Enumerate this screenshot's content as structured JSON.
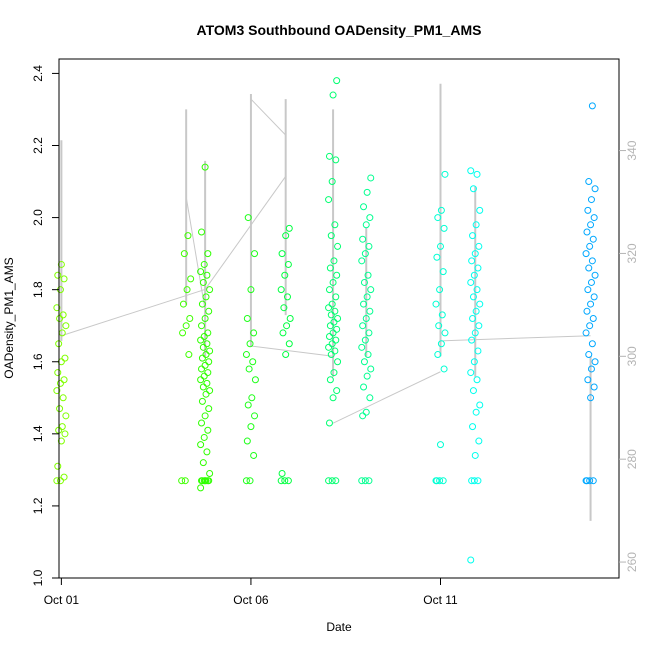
{
  "chart_data": {
    "type": "scatter",
    "title": "ATOM3 Southbound OADensity_PM1_AMS",
    "xlabel": "Date",
    "ylabel": "OADensity_PM1_AMS",
    "xlim": [
      "2017-09-30T22:30",
      "2017-10-15T17:00"
    ],
    "ylim": [
      1.0,
      2.44
    ],
    "y2lim": [
      256.9,
      357.8
    ],
    "x_ticks": [
      {
        "date": "2017-10-01",
        "label": "Oct 01"
      },
      {
        "date": "2017-10-06",
        "label": "Oct 06"
      },
      {
        "date": "2017-10-11",
        "label": "Oct 11"
      }
    ],
    "y_ticks": [
      {
        "value": 1.0,
        "label": "1.0"
      },
      {
        "value": 1.2,
        "label": "1.2"
      },
      {
        "value": 1.4,
        "label": "1.4"
      },
      {
        "value": 1.6,
        "label": "1.6"
      },
      {
        "value": 1.8,
        "label": "1.8"
      },
      {
        "value": 2.0,
        "label": "2.0"
      },
      {
        "value": 2.2,
        "label": "2.2"
      },
      {
        "value": 2.4,
        "label": "2.4"
      }
    ],
    "y2_ticks": [
      {
        "value": 260,
        "label": "260"
      },
      {
        "value": 280,
        "label": "280"
      },
      {
        "value": 300,
        "label": "300"
      },
      {
        "value": 320,
        "label": "320"
      },
      {
        "value": 340,
        "label": "340"
      }
    ],
    "grid": false,
    "legend": "none",
    "point_series": [
      {
        "x": "2017-10-01T00:00",
        "color": "#80ff00",
        "values": [
          1.27,
          1.27,
          1.28,
          1.31,
          1.38,
          1.4,
          1.41,
          1.42,
          1.45,
          1.47,
          1.5,
          1.52,
          1.54,
          1.55,
          1.57,
          1.6,
          1.61,
          1.65,
          1.68,
          1.7,
          1.72,
          1.73,
          1.75,
          1.8,
          1.83,
          1.84,
          1.87
        ]
      },
      {
        "x": "2017-10-04T07:00",
        "color": "#3fff00",
        "values": [
          1.27,
          1.27,
          1.62,
          1.68,
          1.7,
          1.72,
          1.76,
          1.8,
          1.83,
          1.9,
          1.95
        ]
      },
      {
        "x": "2017-10-04T19:00",
        "color": "#2fff00",
        "values": [
          1.25,
          1.27,
          1.27,
          1.27,
          1.27,
          1.27,
          1.27,
          1.27,
          1.29,
          1.32,
          1.35,
          1.37,
          1.39,
          1.41,
          1.43,
          1.45,
          1.47,
          1.49,
          1.51,
          1.52,
          1.53,
          1.54,
          1.55,
          1.56,
          1.57,
          1.58,
          1.59,
          1.6,
          1.61,
          1.62,
          1.63,
          1.64,
          1.65,
          1.66,
          1.67,
          1.68,
          1.7,
          1.72,
          1.74,
          1.76,
          1.78,
          1.8,
          1.82,
          1.84,
          1.85,
          1.87,
          1.9,
          1.96,
          2.14
        ]
      },
      {
        "x": "2017-10-06T00:00",
        "color": "#1fff1a",
        "values": [
          1.27,
          1.27,
          1.34,
          1.38,
          1.42,
          1.45,
          1.48,
          1.5,
          1.55,
          1.58,
          1.6,
          1.62,
          1.65,
          1.68,
          1.72,
          1.8,
          1.9,
          2.0
        ]
      },
      {
        "x": "2017-10-06T22:00",
        "color": "#00ff40",
        "values": [
          1.27,
          1.27,
          1.27,
          1.29,
          1.62,
          1.65,
          1.68,
          1.7,
          1.72,
          1.75,
          1.78,
          1.8,
          1.84,
          1.87,
          1.9,
          1.95,
          1.97
        ]
      },
      {
        "x": "2017-10-08T04:00",
        "color": "#00ff70",
        "values": [
          1.27,
          1.27,
          1.27,
          1.43,
          1.5,
          1.52,
          1.55,
          1.57,
          1.6,
          1.62,
          1.63,
          1.64,
          1.65,
          1.66,
          1.67,
          1.68,
          1.69,
          1.7,
          1.71,
          1.72,
          1.73,
          1.74,
          1.75,
          1.76,
          1.78,
          1.8,
          1.82,
          1.84,
          1.86,
          1.88,
          1.92,
          1.95,
          1.98,
          2.05,
          2.1,
          2.16,
          2.17,
          2.34,
          2.38
        ]
      },
      {
        "x": "2017-10-09T01:00",
        "color": "#00ff90",
        "values": [
          1.27,
          1.27,
          1.27,
          1.45,
          1.46,
          1.5,
          1.53,
          1.56,
          1.58,
          1.6,
          1.62,
          1.64,
          1.66,
          1.68,
          1.7,
          1.72,
          1.74,
          1.76,
          1.78,
          1.8,
          1.82,
          1.84,
          1.88,
          1.9,
          1.92,
          1.94,
          1.98,
          2.0,
          2.03,
          2.07,
          2.11
        ]
      },
      {
        "x": "2017-10-11T00:00",
        "color": "#00ffd4",
        "values": [
          1.27,
          1.27,
          1.27,
          1.27,
          1.37,
          1.58,
          1.62,
          1.65,
          1.68,
          1.7,
          1.73,
          1.76,
          1.8,
          1.85,
          1.89,
          1.92,
          1.97,
          2.0,
          2.02,
          2.12
        ]
      },
      {
        "x": "2017-10-11T22:00",
        "color": "#00ffee",
        "values": [
          1.05,
          1.27,
          1.27,
          1.27,
          1.34,
          1.38,
          1.42,
          1.46,
          1.48,
          1.52,
          1.55,
          1.57,
          1.6,
          1.63,
          1.66,
          1.68,
          1.7,
          1.72,
          1.74,
          1.76,
          1.78,
          1.8,
          1.82,
          1.84,
          1.86,
          1.88,
          1.9,
          1.92,
          1.95,
          1.98,
          2.02,
          2.08,
          2.12,
          2.13
        ]
      },
      {
        "x": "2017-10-14T23:00",
        "color": "#00a8ff",
        "values": [
          1.27,
          1.27,
          1.27,
          1.27,
          1.5,
          1.53,
          1.55,
          1.58,
          1.6,
          1.62,
          1.65,
          1.68,
          1.7,
          1.72,
          1.74,
          1.76,
          1.78,
          1.8,
          1.82,
          1.84,
          1.86,
          1.88,
          1.9,
          1.92,
          1.94,
          1.96,
          1.98,
          2.0,
          2.02,
          2.05,
          2.08,
          2.1,
          2.31
        ]
      }
    ],
    "line_series": {
      "color": "#c8c8c8",
      "axis": "right",
      "range_segments": [
        {
          "x": "2017-10-01T00:00",
          "min": 303,
          "max": 342
        },
        {
          "x": "2017-10-04T07:00",
          "min": 310,
          "max": 348
        },
        {
          "x": "2017-10-04T19:00",
          "min": 300,
          "max": 338
        },
        {
          "x": "2017-10-06T00:00",
          "min": 302,
          "max": 351
        },
        {
          "x": "2017-10-06T22:00",
          "min": 308,
          "max": 350
        },
        {
          "x": "2017-10-08T04:00",
          "min": 296,
          "max": 348
        },
        {
          "x": "2017-10-09T01:00",
          "min": 300,
          "max": 325
        },
        {
          "x": "2017-10-11T00:00",
          "min": 300,
          "max": 353
        },
        {
          "x": "2017-10-11T22:00",
          "min": 296,
          "max": 333
        },
        {
          "x": "2017-10-14T23:00",
          "min": 268,
          "max": 300
        }
      ],
      "connectors": [
        {
          "x": [
            "2017-10-01T00:00",
            "2017-10-04T19:00"
          ],
          "y": [
            304,
            313
          ]
        },
        {
          "x": [
            "2017-10-04T07:00",
            "2017-10-04T19:00"
          ],
          "y": [
            331,
            309
          ]
        },
        {
          "x": [
            "2017-10-04T19:00",
            "2017-10-06T22:00"
          ],
          "y": [
            313,
            335
          ]
        },
        {
          "x": [
            "2017-10-06T00:00",
            "2017-10-06T22:00"
          ],
          "y": [
            350,
            343
          ]
        },
        {
          "x": [
            "2017-10-06T00:00",
            "2017-10-08T04:00"
          ],
          "y": [
            302,
            300
          ]
        },
        {
          "x": [
            "2017-10-08T04:00",
            "2017-10-11T00:00"
          ],
          "y": [
            287,
            297
          ]
        },
        {
          "x": [
            "2017-10-11T00:00",
            "2017-10-14T23:00"
          ],
          "y": [
            303,
            304
          ]
        }
      ]
    }
  }
}
